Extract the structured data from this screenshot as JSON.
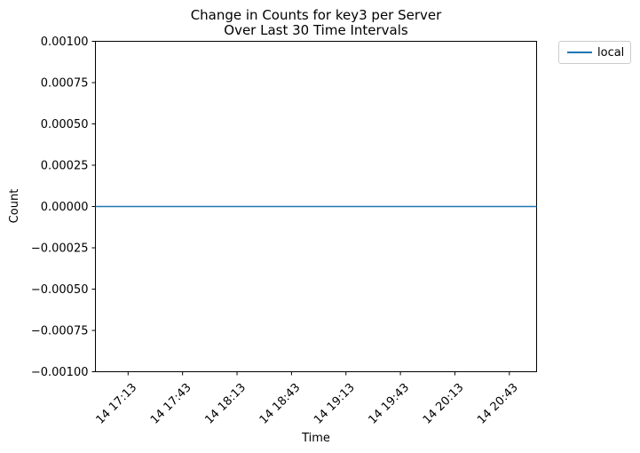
{
  "chart_data": {
    "type": "line",
    "title_line1": "Change in Counts for key3 per Server",
    "title_line2": "Over Last 30 Time Intervals",
    "xlabel": "Time",
    "ylabel": "Count",
    "ylim": [
      -0.001,
      0.001
    ],
    "yticks": [
      {
        "value": 0.001,
        "label": "0.00100"
      },
      {
        "value": 0.00075,
        "label": "0.00075"
      },
      {
        "value": 0.0005,
        "label": "0.00050"
      },
      {
        "value": 0.00025,
        "label": "0.00025"
      },
      {
        "value": 0.0,
        "label": "0.00000"
      },
      {
        "value": -0.00025,
        "label": "−0.00025"
      },
      {
        "value": -0.0005,
        "label": "−0.00050"
      },
      {
        "value": -0.00075,
        "label": "−0.00075"
      },
      {
        "value": -0.001,
        "label": "−0.00100"
      }
    ],
    "xlim": [
      "14 16:55",
      "20:58"
    ],
    "xticks": [
      {
        "label": "14 17:13",
        "time": "17:13"
      },
      {
        "label": "14 17:43",
        "time": "17:43"
      },
      {
        "label": "14 18:13",
        "time": "18:13"
      },
      {
        "label": "14 18:43",
        "time": "18:43"
      },
      {
        "label": "14 19:13",
        "time": "19:13"
      },
      {
        "label": "14 19:43",
        "time": "19:43"
      },
      {
        "label": "14 20:13",
        "time": "20:13"
      },
      {
        "label": "14 20:43",
        "time": "20:43"
      }
    ],
    "series": [
      {
        "name": "local",
        "color": "#1f77b4",
        "x": [
          "16:55",
          "20:58"
        ],
        "values": [
          0,
          0
        ]
      }
    ],
    "legend_position": "outside-top-right",
    "grid": false
  }
}
